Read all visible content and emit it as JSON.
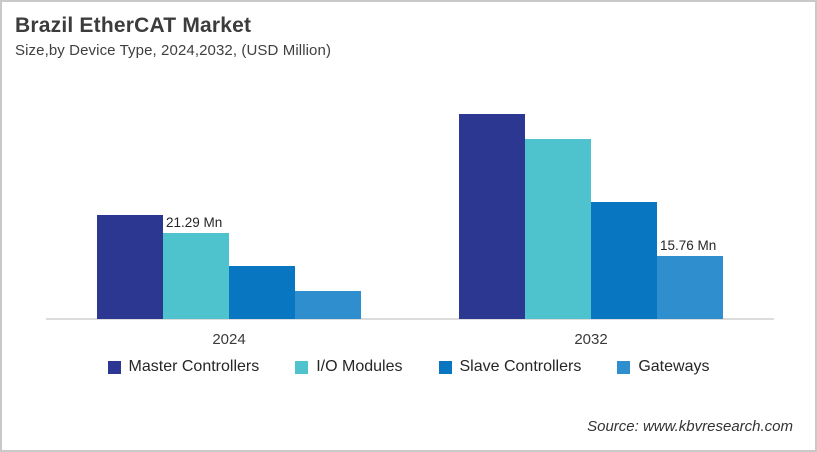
{
  "header": {
    "title": "Brazil EtherCAT Market",
    "subtitle": "Size,by Device Type, 2024,2032, (USD Million)"
  },
  "source": "Source: www.kbvresearch.com",
  "chart_data": {
    "type": "bar",
    "title": "Brazil EtherCAT Market",
    "subtitle": "Size,by Device Type, 2024,2032, (USD Million)",
    "unit": "USD Million",
    "categories": [
      "2024",
      "2032"
    ],
    "series": [
      {
        "name": "Master Controllers",
        "color": "#2C3792",
        "values": [
          25.9,
          51.0
        ]
      },
      {
        "name": "I/O Modules",
        "color": "#4EC3CD",
        "values": [
          21.29,
          44.7
        ]
      },
      {
        "name": "Slave Controllers",
        "color": "#0876C1",
        "values": [
          13.2,
          29.0
        ]
      },
      {
        "name": "Gateways",
        "color": "#2F8FCE",
        "values": [
          7.0,
          15.76
        ]
      }
    ],
    "data_labels": [
      {
        "category": "2024",
        "series": "I/O Modules",
        "text": "21.29 Mn"
      },
      {
        "category": "2032",
        "series": "Gateways",
        "text": "15.76 Mn"
      }
    ],
    "legend_position": "bottom",
    "grid": false,
    "axis_color": "#DCDCDC",
    "ylim": [
      0,
      55
    ]
  }
}
